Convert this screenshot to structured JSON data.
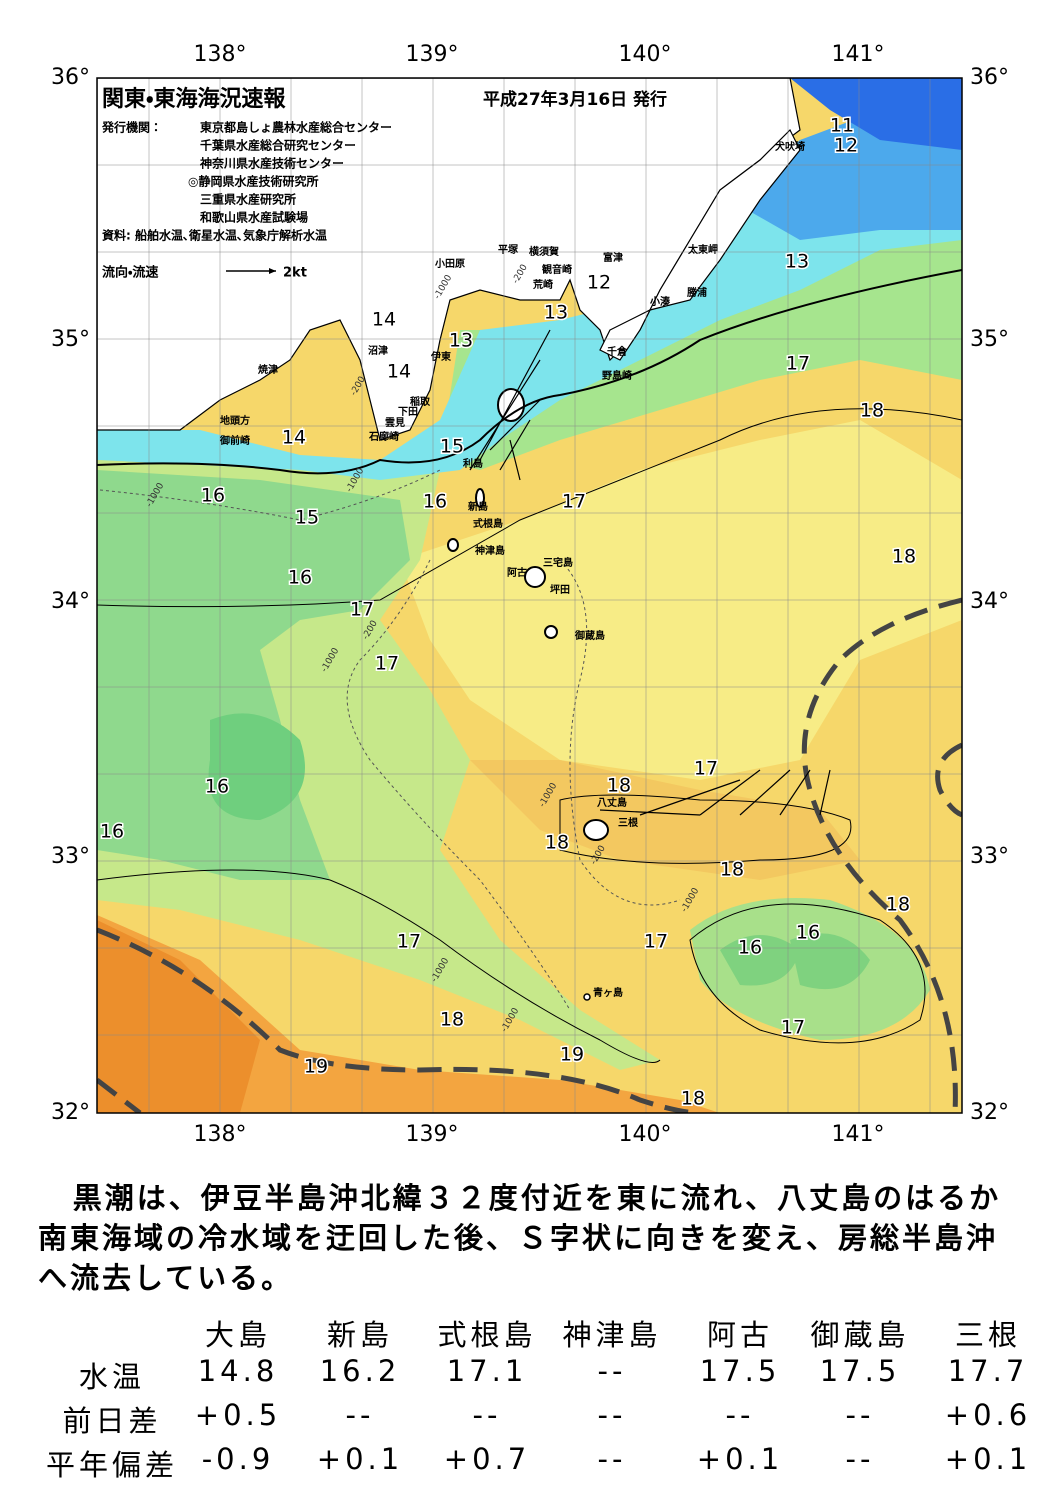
{
  "header": {
    "title": "関東・東海海況速報",
    "date": "平成27年3月16日 発行",
    "issuer_label": "発行機関：",
    "issuers": [
      "東京都島しょ農林水産総合センター",
      "千葉県水産総合研究センター",
      "神奈川県水産技術センター",
      "◎静岡県水産技術研究所",
      "三重県水産研究所",
      "和歌山県水産試験場"
    ],
    "source": "資料: 船舶水温､衛星水温､気象庁解析水温",
    "legend_label": "流向・流速",
    "legend_speed": "2kt"
  },
  "map": {
    "longitude_labels": [
      "138°",
      "139°",
      "140°",
      "141°"
    ],
    "latitude_labels": [
      "36°",
      "35°",
      "34°",
      "33°",
      "32°"
    ],
    "place_names": [
      "犬吠埼",
      "太東岬",
      "勝浦",
      "小湊",
      "富津",
      "千倉",
      "野島崎",
      "横須賀",
      "平塚",
      "観音崎",
      "荒崎",
      "小田原",
      "沼津",
      "伊東",
      "焼津",
      "稲取",
      "下田",
      "雲見",
      "石廊崎",
      "地頭方",
      "御前崎",
      "利島",
      "新島",
      "式根島",
      "神津島",
      "三宅島",
      "阿古",
      "坪田",
      "御蔵島",
      "八丈島",
      "三根",
      "青ヶ島"
    ],
    "temperature_labels": [
      "11",
      "12",
      "13",
      "12",
      "13",
      "14",
      "13",
      "14",
      "17",
      "18",
      "14",
      "15",
      "16",
      "16",
      "17",
      "15",
      "18",
      "16",
      "17",
      "17",
      "17",
      "18",
      "16",
      "16",
      "18",
      "18",
      "18",
      "17",
      "17",
      "16",
      "16",
      "18",
      "17",
      "19",
      "19",
      "18"
    ],
    "depth_labels": [
      "-200",
      "-1000",
      "-200",
      "-1000",
      "-1000",
      "-200",
      "-1000",
      "-1000",
      "-1000",
      "-1000",
      "-200",
      "-1000"
    ]
  },
  "description": "黒潮は、伊豆半島沖北緯３２度付近を東に流れ、八丈島のはるか南東海域の冷水域を迂回した後、Ｓ字状に向きを変え、房総半島沖へ流去している。",
  "table": {
    "columns": [
      "大島",
      "新島",
      "式根島",
      "神津島",
      "阿古",
      "御蔵島",
      "三根"
    ],
    "rows": [
      {
        "label": "水温",
        "cells": [
          "14.8",
          "16.2",
          "17.1",
          "--",
          "17.5",
          "17.5",
          "17.7"
        ]
      },
      {
        "label": "前日差",
        "cells": [
          "+0.5",
          "--",
          "--",
          "--",
          "--",
          "--",
          "+0.6"
        ]
      },
      {
        "label": "平年偏差",
        "cells": [
          "-0.9",
          "+0.1",
          "+0.7",
          "--",
          "+0.1",
          "--",
          "+0.1"
        ]
      }
    ]
  }
}
